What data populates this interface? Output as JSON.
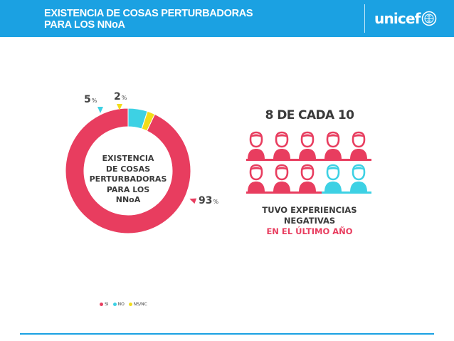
{
  "header": {
    "title_line1": "EXISTENCIA DE COSAS PERTURBADORAS",
    "title_line2": "PARA LOS NNoA",
    "logo_text": "unicef"
  },
  "colors": {
    "header_blue": "#1ba1e2",
    "si": "#e83d5f",
    "no": "#3dd1e4",
    "nsnc": "#f2dc1a",
    "text": "#3a3a3a"
  },
  "chart_data": {
    "type": "pie",
    "style": "donut",
    "center_label": [
      "EXISTENCIA",
      "DE COSAS",
      "PERTURBADORAS",
      "PARA LOS",
      "NNoA"
    ],
    "categories": [
      "SI",
      "NO",
      "NS/NC"
    ],
    "values": [
      93,
      5,
      2
    ],
    "value_labels": [
      "93",
      "5",
      "2"
    ],
    "unit": "%",
    "legend_position": "bottom"
  },
  "infographic": {
    "headline": "8 DE CADA 10",
    "highlighted_count": 8,
    "total_count": 10,
    "caption_line1": "TUVO EXPERIENCIAS",
    "caption_line2": "NEGATIVAS",
    "caption_line3": "EN EL ÚLTIMO AÑO",
    "icon": "person-icon"
  }
}
